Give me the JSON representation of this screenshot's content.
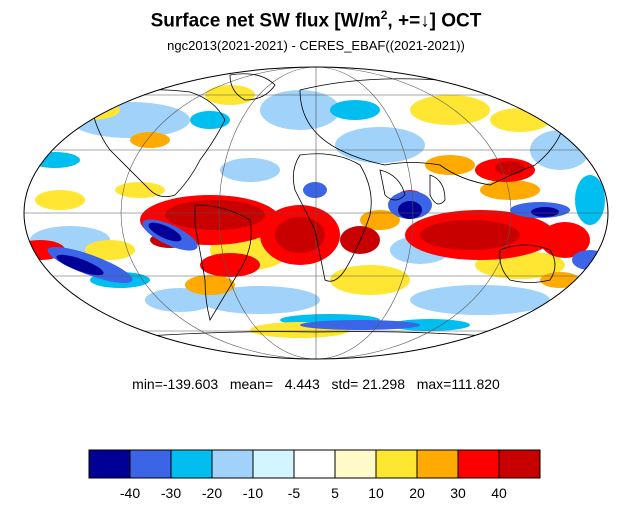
{
  "title": {
    "main": "Surface net SW flux [W/m",
    "sup": "2",
    "rest": ", +=↓]  OCT"
  },
  "subtitle": "ngc2013(2021-2021) - CERES_EBAF((2021-2021))",
  "stats": {
    "min_label": "min=",
    "min": "-139.603",
    "mean_label": "mean=",
    "mean": "4.443",
    "std_label": "std=",
    "std": "21.298",
    "max_label": "max=",
    "max": "111.820"
  },
  "colorbar": {
    "colors": [
      "#000096",
      "#3c64e6",
      "#00bef0",
      "#a0d2fa",
      "#d2f5ff",
      "#ffffff",
      "#fffac8",
      "#ffe632",
      "#ffaa00",
      "#ff0000",
      "#c80000"
    ],
    "labels": [
      "-40",
      "-30",
      "-20",
      "-10",
      "-5",
      "5",
      "10",
      "20",
      "30",
      "40"
    ]
  },
  "map": {
    "projection": "mollweide",
    "palette": {
      "dark_blue": "#000096",
      "blue": "#3c64e6",
      "cyan": "#00bef0",
      "light_blue": "#a0d2fa",
      "pale_blue": "#d2f5ff",
      "pale_yellow": "#fffac8",
      "yellow": "#ffe632",
      "orange": "#ffaa00",
      "red": "#ff0000",
      "dark_red": "#c80000"
    }
  }
}
